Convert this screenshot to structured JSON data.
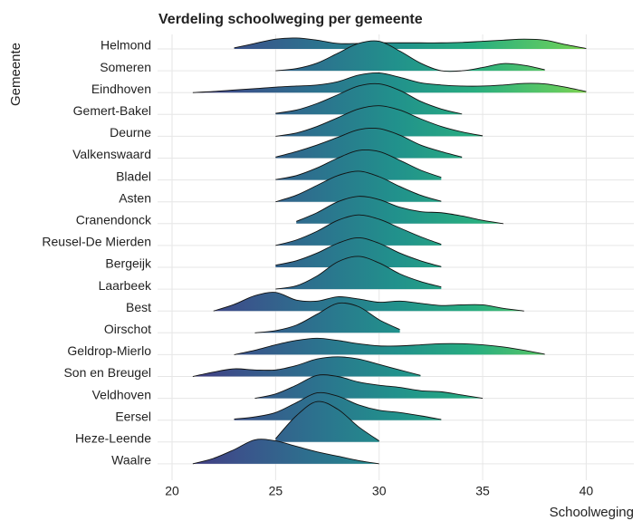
{
  "chart_data": {
    "type": "ridgeline",
    "title": "Verdeling schoolweging per gemeente",
    "x_label": "Schoolweging",
    "y_label": "Gemeente",
    "x": [
      21,
      22,
      23,
      24,
      25,
      26,
      27,
      28,
      29,
      30,
      31,
      32,
      33,
      34,
      35,
      36,
      37,
      38,
      39,
      40,
      41
    ],
    "xlim": [
      19.3,
      42.3
    ],
    "xticks": [
      20,
      25,
      30,
      35,
      40
    ],
    "grid": true,
    "outline_color": "#111111",
    "gradient_colors": [
      "#472d7b",
      "#3b528b",
      "#2c728e",
      "#21918c",
      "#28ae80",
      "#5ec962",
      "#addc30"
    ],
    "series": [
      {
        "name": "Helmond",
        "values": [
          null,
          null,
          0.05,
          0.25,
          0.45,
          0.5,
          0.4,
          0.25,
          0.25,
          0.28,
          0.28,
          0.28,
          0.28,
          0.3,
          0.35,
          0.4,
          0.45,
          0.4,
          0.2,
          0.02,
          null
        ]
      },
      {
        "name": "Someren",
        "values": [
          null,
          null,
          null,
          null,
          0,
          0.1,
          0.35,
          0.8,
          1.25,
          1.35,
          0.9,
          0.35,
          0,
          0,
          0.15,
          0.33,
          0.25,
          0.05,
          null,
          null,
          null
        ]
      },
      {
        "name": "Eindhoven",
        "values": [
          0,
          0.05,
          0.12,
          0.18,
          0.25,
          0.3,
          0.35,
          0.5,
          0.8,
          0.9,
          0.7,
          0.45,
          0.35,
          0.3,
          0.3,
          0.35,
          0.42,
          0.4,
          0.25,
          0.05,
          null
        ]
      },
      {
        "name": "Gemert-Bakel",
        "values": [
          null,
          null,
          null,
          null,
          0.05,
          0.2,
          0.5,
          0.9,
          1.3,
          1.4,
          1.1,
          0.6,
          0.25,
          0.02,
          null,
          null,
          null,
          null,
          null,
          null,
          null
        ]
      },
      {
        "name": "Deurne",
        "values": [
          null,
          null,
          null,
          null,
          0,
          0.15,
          0.45,
          0.85,
          1.25,
          1.4,
          1.2,
          0.8,
          0.45,
          0.2,
          0.02,
          null,
          null,
          null,
          null,
          null,
          null
        ]
      },
      {
        "name": "Valkenswaard",
        "values": [
          null,
          null,
          null,
          null,
          0.05,
          0.3,
          0.6,
          0.95,
          1.3,
          1.35,
          1.05,
          0.6,
          0.3,
          0.05,
          null,
          null,
          null,
          null,
          null,
          null,
          null
        ]
      },
      {
        "name": "Bladel",
        "values": [
          null,
          null,
          null,
          null,
          0.02,
          0.2,
          0.55,
          1.0,
          1.35,
          1.3,
          0.9,
          0.45,
          0.12,
          null,
          null,
          null,
          null,
          null,
          null,
          null,
          null
        ]
      },
      {
        "name": "Asten",
        "values": [
          null,
          null,
          null,
          null,
          0,
          0.3,
          0.75,
          1.2,
          1.4,
          1.15,
          0.7,
          0.3,
          0.02,
          null,
          null,
          null,
          null,
          null,
          null,
          null,
          null
        ]
      },
      {
        "name": "Cranendonck",
        "values": [
          null,
          null,
          null,
          null,
          null,
          0.1,
          0.5,
          1.0,
          1.25,
          1.1,
          0.75,
          0.55,
          0.5,
          0.35,
          0.15,
          0,
          null,
          null,
          null,
          null,
          null
        ]
      },
      {
        "name": "Reusel-De Mierden",
        "values": [
          null,
          null,
          null,
          null,
          0,
          0.25,
          0.65,
          1.15,
          1.4,
          1.2,
          0.8,
          0.4,
          0.05,
          null,
          null,
          null,
          null,
          null,
          null,
          null,
          null
        ]
      },
      {
        "name": "Bergeijk",
        "values": [
          null,
          null,
          null,
          null,
          0.1,
          0.3,
          0.65,
          1.1,
          1.35,
          1.1,
          0.65,
          0.3,
          0.03,
          null,
          null,
          null,
          null,
          null,
          null,
          null,
          null
        ]
      },
      {
        "name": "Laarbeek",
        "values": [
          null,
          null,
          null,
          null,
          0,
          0.15,
          0.6,
          1.25,
          1.5,
          1.2,
          0.7,
          0.35,
          0.1,
          null,
          null,
          null,
          null,
          null,
          null,
          null,
          null
        ]
      },
      {
        "name": "Best",
        "values": [
          null,
          0,
          0.3,
          0.7,
          0.85,
          0.5,
          0.45,
          0.65,
          0.55,
          0.4,
          0.45,
          0.35,
          0.25,
          0.28,
          0.28,
          0.12,
          0,
          null,
          null,
          null,
          null
        ]
      },
      {
        "name": "Oirschot",
        "values": [
          null,
          null,
          null,
          0,
          0.1,
          0.35,
          0.85,
          1.35,
          1.2,
          0.6,
          0.15,
          null,
          null,
          null,
          null,
          null,
          null,
          null,
          null,
          null,
          null
        ]
      },
      {
        "name": "Geldrop-Mierlo",
        "values": [
          null,
          null,
          0,
          0.2,
          0.45,
          0.65,
          0.75,
          0.65,
          0.5,
          0.4,
          0.4,
          0.45,
          0.5,
          0.5,
          0.45,
          0.35,
          0.2,
          0.02,
          null,
          null,
          null
        ]
      },
      {
        "name": "Son en Breugel",
        "values": [
          0,
          0.2,
          0.35,
          0.3,
          0.3,
          0.5,
          0.8,
          0.9,
          0.8,
          0.55,
          0.3,
          0.05,
          null,
          null,
          null,
          null,
          null,
          null,
          null,
          null,
          null
        ]
      },
      {
        "name": "Veldhoven",
        "values": [
          null,
          null,
          null,
          0,
          0.2,
          0.6,
          1.05,
          1.0,
          0.75,
          0.6,
          0.5,
          0.35,
          0.3,
          0.15,
          0,
          null,
          null,
          null,
          null,
          null,
          null
        ]
      },
      {
        "name": "Eersel",
        "values": [
          null,
          null,
          0.05,
          0.15,
          0.35,
          0.8,
          1.25,
          1.1,
          0.7,
          0.45,
          0.35,
          0.2,
          0.03,
          null,
          null,
          null,
          null,
          null,
          null,
          null,
          null
        ]
      },
      {
        "name": "Heze-Leende",
        "values": [
          null,
          null,
          null,
          null,
          0.15,
          1.2,
          1.85,
          1.5,
          0.7,
          0.05,
          null,
          null,
          null,
          null,
          null,
          null,
          null,
          null,
          null,
          null,
          null
        ]
      },
      {
        "name": "Waalre",
        "values": [
          0,
          0.25,
          0.65,
          1.1,
          1.05,
          0.8,
          0.55,
          0.35,
          0.15,
          0,
          null,
          null,
          null,
          null,
          null,
          null,
          null,
          null,
          null,
          null,
          null
        ]
      }
    ]
  }
}
